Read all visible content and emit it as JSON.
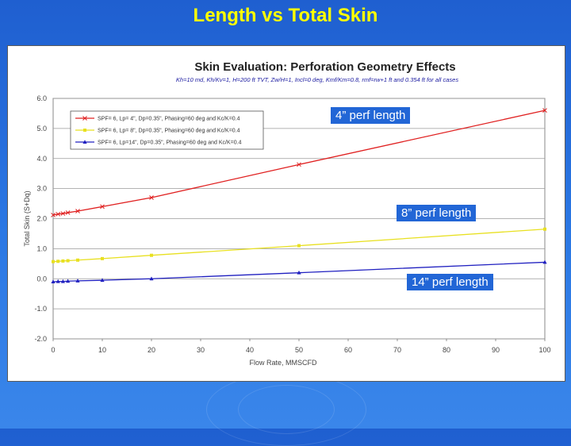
{
  "slide": {
    "title": "Length vs Total Skin"
  },
  "callouts": [
    "4” perf length",
    "8” perf length",
    "14” perf length"
  ],
  "colors": {
    "background": "#2b78e4",
    "title": "#ffff00",
    "callout_bg": "#2266d6"
  },
  "chart_data": {
    "type": "line",
    "title": "Skin Evaluation: Perforation Geometry Effects",
    "subtitle": "Kh=10 md, Kh/Kv=1, H=200 ft TVT, Zw/H=1, Incl=0 deg, Kmf/Km=0.8, rmf=rw+1 ft and 0.354 ft for all cases",
    "xlabel": "Flow Rate, MMSCFD",
    "ylabel": "Total Skin (S+Dq)",
    "xlim": [
      0,
      100
    ],
    "ylim": [
      -2.0,
      6.0
    ],
    "xticks": [
      0,
      10,
      20,
      30,
      40,
      50,
      60,
      70,
      80,
      90,
      100
    ],
    "yticks": [
      6.0,
      5.0,
      4.0,
      3.0,
      2.0,
      1.0,
      0.0,
      -1.0,
      -2.0
    ],
    "ytick_labels": [
      "6.0",
      "5.0",
      "4.0",
      "3.0",
      "2.0",
      "1.0",
      "0.0",
      "-1.0",
      "-2.0"
    ],
    "x": [
      0,
      1,
      2,
      3,
      5,
      10,
      20,
      50,
      100
    ],
    "series": [
      {
        "name": "SPF= 6, Lp= 4\", Dp=0.35\", Phasing=60 deg and Kc/K=0.4",
        "color": "#e02020",
        "marker": "x",
        "values": [
          2.12,
          2.15,
          2.17,
          2.2,
          2.25,
          2.4,
          2.7,
          3.8,
          5.6
        ]
      },
      {
        "name": "SPF= 6, Lp= 8\", Dp=0.35\", Phasing=60 deg and Kc/K=0.4",
        "color": "#e8e020",
        "marker": "square",
        "values": [
          0.57,
          0.58,
          0.59,
          0.6,
          0.62,
          0.67,
          0.78,
          1.1,
          1.65
        ]
      },
      {
        "name": "SPF= 6, Lp=14\", Dp=0.35\", Phasing=60 deg and Kc/K=0.4",
        "color": "#2020c0",
        "marker": "triangle",
        "values": [
          -0.1,
          -0.09,
          -0.09,
          -0.08,
          -0.07,
          -0.05,
          0.0,
          0.2,
          0.55
        ]
      }
    ]
  }
}
